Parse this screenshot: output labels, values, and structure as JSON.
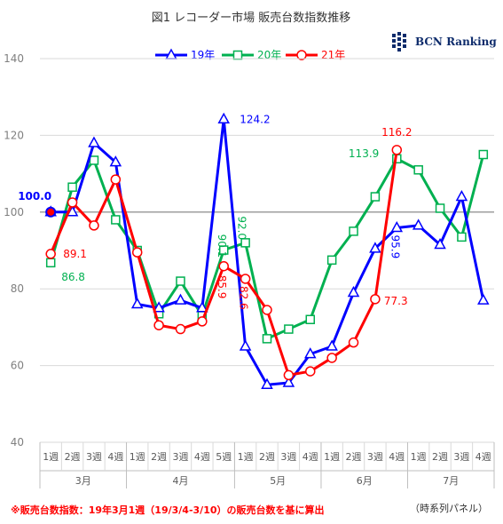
{
  "title": "図1 レコーダー市場 販売台数指数推移",
  "logo_text": "BCN Ranking",
  "footnote": "※販売台数指数：19年3月1週（19/3/4-3/10）の販売台数を基に算出",
  "panel_note": "（時系列パネル）",
  "chart_data": {
    "type": "line",
    "title": "図1 レコーダー市場 販売台数指数推移",
    "xlabel": "",
    "ylabel": "",
    "ylim": [
      40,
      140
    ],
    "yticks": [
      40,
      60,
      80,
      100,
      120,
      140
    ],
    "reference_line": 100,
    "categories": [
      "1週",
      "2週",
      "3週",
      "4週",
      "1週",
      "2週",
      "3週",
      "4週",
      "5週",
      "1週",
      "2週",
      "3週",
      "4週",
      "1週",
      "2週",
      "3週",
      "4週",
      "1週",
      "2週",
      "3週",
      "4週"
    ],
    "months": [
      {
        "label": "3月",
        "count": 4
      },
      {
        "label": "4月",
        "count": 5
      },
      {
        "label": "5月",
        "count": 4
      },
      {
        "label": "6月",
        "count": 4
      },
      {
        "label": "7月",
        "count": 4
      }
    ],
    "legend_position": "top",
    "series": [
      {
        "name": "19年",
        "color": "#0000ff",
        "marker": "triangle",
        "values": [
          100.0,
          100.0,
          118.0,
          113.0,
          76.0,
          75.0,
          77.0,
          75.0,
          124.2,
          65.0,
          55.0,
          55.5,
          63.0,
          65.0,
          79.0,
          90.5,
          95.9,
          96.5,
          91.5,
          104.0,
          77.0
        ]
      },
      {
        "name": "20年",
        "color": "#00b050",
        "marker": "square",
        "values": [
          86.8,
          106.5,
          113.5,
          98.0,
          90.0,
          73.5,
          82.0,
          73.0,
          90.1,
          92.0,
          67.0,
          69.5,
          72.0,
          87.5,
          95.0,
          104.0,
          113.9,
          111.0,
          101.0,
          93.5,
          115.0
        ]
      },
      {
        "name": "21年",
        "color": "#ff0000",
        "marker": "circle",
        "values": [
          89.1,
          102.5,
          96.5,
          108.5,
          89.5,
          70.5,
          69.5,
          71.5,
          85.9,
          82.6,
          74.5,
          57.5,
          58.5,
          62.0,
          66.0,
          77.3,
          116.2,
          null,
          null,
          null,
          null
        ]
      }
    ],
    "annotations": [
      {
        "text": "100.0",
        "series": "19年",
        "index": 0,
        "color": "#0000ff"
      },
      {
        "text": "89.1",
        "series": "21年",
        "index": 0,
        "color": "#ff0000"
      },
      {
        "text": "86.8",
        "series": "20年",
        "index": 0,
        "color": "#00b050"
      },
      {
        "text": "124.2",
        "series": "19年",
        "index": 8,
        "color": "#0000ff"
      },
      {
        "text": "90.1",
        "series": "20年",
        "index": 8,
        "color": "#00b050"
      },
      {
        "text": "92.0",
        "series": "20年",
        "index": 9,
        "color": "#00b050"
      },
      {
        "text": "85.9",
        "series": "21年",
        "index": 8,
        "color": "#ff0000"
      },
      {
        "text": "82.6",
        "series": "21年",
        "index": 9,
        "color": "#ff0000"
      },
      {
        "text": "116.2",
        "series": "21年",
        "index": 16,
        "color": "#ff0000"
      },
      {
        "text": "113.9",
        "series": "20年",
        "index": 16,
        "color": "#00b050"
      },
      {
        "text": "95.9",
        "series": "19年",
        "index": 16,
        "color": "#0000ff"
      },
      {
        "text": "77.3",
        "series": "21年",
        "index": 15,
        "color": "#ff0000"
      }
    ]
  }
}
